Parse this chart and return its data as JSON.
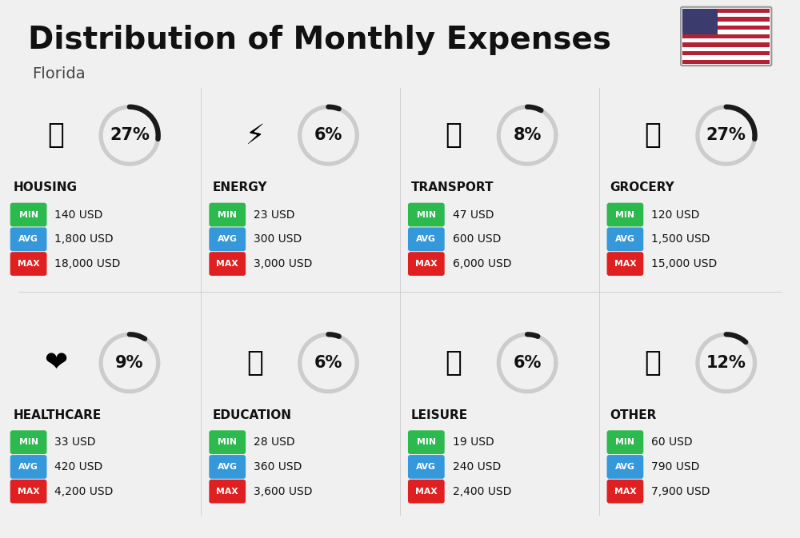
{
  "title": "Distribution of Monthly Expenses",
  "subtitle": "Florida",
  "background_color": "#f0f0f0",
  "categories": [
    {
      "name": "HOUSING",
      "percent": 27,
      "min_val": "140 USD",
      "avg_val": "1,800 USD",
      "max_val": "18,000 USD",
      "icon_idx": 0,
      "row": 0,
      "col": 0
    },
    {
      "name": "ENERGY",
      "percent": 6,
      "min_val": "23 USD",
      "avg_val": "300 USD",
      "max_val": "3,000 USD",
      "icon_idx": 1,
      "row": 0,
      "col": 1
    },
    {
      "name": "TRANSPORT",
      "percent": 8,
      "min_val": "47 USD",
      "avg_val": "600 USD",
      "max_val": "6,000 USD",
      "icon_idx": 2,
      "row": 0,
      "col": 2
    },
    {
      "name": "GROCERY",
      "percent": 27,
      "min_val": "120 USD",
      "avg_val": "1,500 USD",
      "max_val": "15,000 USD",
      "icon_idx": 3,
      "row": 0,
      "col": 3
    },
    {
      "name": "HEALTHCARE",
      "percent": 9,
      "min_val": "33 USD",
      "avg_val": "420 USD",
      "max_val": "4,200 USD",
      "icon_idx": 4,
      "row": 1,
      "col": 0
    },
    {
      "name": "EDUCATION",
      "percent": 6,
      "min_val": "28 USD",
      "avg_val": "360 USD",
      "max_val": "3,600 USD",
      "icon_idx": 5,
      "row": 1,
      "col": 1
    },
    {
      "name": "LEISURE",
      "percent": 6,
      "min_val": "19 USD",
      "avg_val": "240 USD",
      "max_val": "2,400 USD",
      "icon_idx": 6,
      "row": 1,
      "col": 2
    },
    {
      "name": "OTHER",
      "percent": 12,
      "min_val": "60 USD",
      "avg_val": "790 USD",
      "max_val": "7,900 USD",
      "icon_idx": 7,
      "row": 1,
      "col": 3
    }
  ],
  "min_color": "#2cb94e",
  "avg_color": "#3498db",
  "max_color": "#e02020",
  "label_color": "#ffffff",
  "arc_color_active": "#1a1a1a",
  "arc_color_inactive": "#cccccc",
  "title_fontsize": 28,
  "subtitle_fontsize": 14,
  "category_fontsize": 11,
  "value_fontsize": 10,
  "percent_fontsize": 15
}
